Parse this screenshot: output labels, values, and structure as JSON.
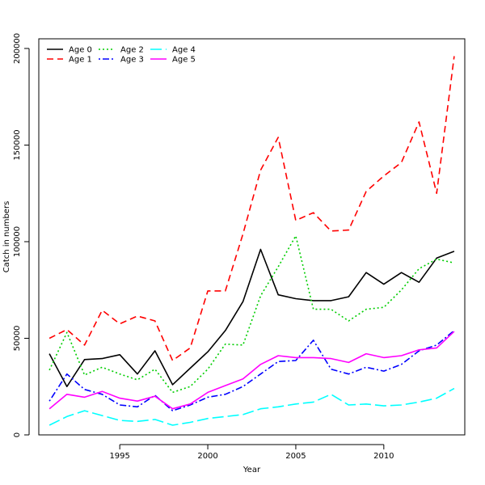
{
  "chart_data": {
    "type": "line",
    "title": "",
    "xlabel": "Year",
    "ylabel": "Catch in numbers",
    "xlim": [
      1990.4,
      2014.6
    ],
    "ylim": [
      0,
      205000
    ],
    "x_ticks": [
      1995,
      2000,
      2005,
      2010
    ],
    "y_ticks": [
      0,
      50000,
      100000,
      150000,
      200000
    ],
    "legend_position": "top-left",
    "x": [
      1991,
      1992,
      1993,
      1994,
      1995,
      1996,
      1997,
      1998,
      1999,
      2000,
      2001,
      2002,
      2003,
      2004,
      2005,
      2006,
      2007,
      2008,
      2009,
      2010,
      2011,
      2012,
      2013,
      2014
    ],
    "series": [
      {
        "name": "Age 0",
        "color": "#000000",
        "dash": "solid",
        "values": [
          42000,
          25000,
          39000,
          39500,
          41500,
          31500,
          43500,
          26000,
          34500,
          43000,
          54000,
          69000,
          96000,
          72500,
          70500,
          69500,
          69500,
          71500,
          84000,
          78000,
          84000,
          79000,
          91500,
          95000
        ]
      },
      {
        "name": "Age 1",
        "color": "#ff0000",
        "dash": "dashed",
        "values": [
          50000,
          54500,
          46500,
          64500,
          57500,
          61500,
          59000,
          38500,
          45000,
          74500,
          74500,
          104000,
          137000,
          154000,
          111000,
          115000,
          105500,
          106000,
          126000,
          134000,
          141000,
          162000,
          125000,
          196000
        ]
      },
      {
        "name": "Age 2",
        "color": "#00cd00",
        "dash": "dotted",
        "values": [
          33500,
          53000,
          31000,
          35000,
          31500,
          28500,
          34000,
          22000,
          25000,
          34000,
          47000,
          46500,
          72000,
          87000,
          103000,
          65000,
          65000,
          59000,
          65000,
          66000,
          75000,
          86000,
          91000,
          89000
        ]
      },
      {
        "name": "Age 3",
        "color": "#0000ff",
        "dash": "dotdash",
        "values": [
          17500,
          31500,
          23500,
          21000,
          15500,
          14500,
          20500,
          12500,
          15500,
          19500,
          21000,
          25000,
          31500,
          38000,
          38500,
          49000,
          34000,
          31500,
          35000,
          33000,
          36500,
          43500,
          46500,
          54000
        ]
      },
      {
        "name": "Age 4",
        "color": "#00ffff",
        "dash": "longdash",
        "values": [
          5000,
          9500,
          12500,
          10000,
          7500,
          7000,
          8000,
          5000,
          6500,
          8500,
          9500,
          10500,
          13500,
          14500,
          16000,
          17000,
          21000,
          15500,
          16000,
          15000,
          15500,
          17000,
          19000,
          24000
        ]
      },
      {
        "name": "Age 5",
        "color": "#ff00ff",
        "dash": "solid",
        "values": [
          13500,
          21000,
          19500,
          22500,
          19000,
          17500,
          20000,
          13500,
          16000,
          22000,
          25500,
          29000,
          36500,
          41000,
          40000,
          40000,
          39500,
          37500,
          42000,
          40000,
          41000,
          44000,
          45000,
          53500
        ]
      }
    ]
  }
}
